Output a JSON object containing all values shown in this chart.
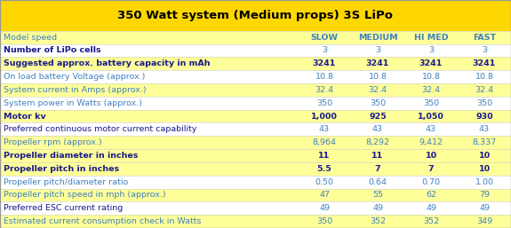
{
  "title": "350 Watt system (Medium props) 3S LiPo",
  "title_bg": "#FFD700",
  "title_color": "#000000",
  "rows": [
    {
      "label": "Model speed",
      "values": [
        "SLOW",
        "MEDIUM",
        "HI MED",
        "FAST"
      ],
      "bold_label": false,
      "highlight": true,
      "bold_values": true,
      "label_color": "#4080C0",
      "val_color": "#4080C0"
    },
    {
      "label": "Number of LiPo cells",
      "values": [
        "3",
        "3",
        "3",
        "3"
      ],
      "bold_label": true,
      "highlight": false,
      "bold_values": false,
      "label_color": "#1A1A8C",
      "val_color": "#4080C0"
    },
    {
      "label": "Suggested approx. battery capacity in mAh",
      "values": [
        "3241",
        "3241",
        "3241",
        "3241"
      ],
      "bold_label": true,
      "highlight": true,
      "bold_values": true,
      "label_color": "#1A1A8C",
      "val_color": "#1A1A8C"
    },
    {
      "label": "On load battery Voltage (approx.)",
      "values": [
        "10.8",
        "10.8",
        "10.8",
        "10.8"
      ],
      "bold_label": false,
      "highlight": false,
      "bold_values": false,
      "label_color": "#4080C0",
      "val_color": "#4080C0"
    },
    {
      "label": "System current in Amps (approx.)",
      "values": [
        "32.4",
        "32.4",
        "32.4",
        "32.4"
      ],
      "bold_label": false,
      "highlight": true,
      "bold_values": false,
      "label_color": "#4080C0",
      "val_color": "#4080C0"
    },
    {
      "label": "System power in Watts (approx.)",
      "values": [
        "350",
        "350",
        "350",
        "350"
      ],
      "bold_label": false,
      "highlight": false,
      "bold_values": false,
      "label_color": "#4080C0",
      "val_color": "#4080C0"
    },
    {
      "label": "Motor kv",
      "values": [
        "1,000",
        "925",
        "1,050",
        "930"
      ],
      "bold_label": true,
      "highlight": true,
      "bold_values": true,
      "label_color": "#1A1A8C",
      "val_color": "#1A1A8C"
    },
    {
      "label": "Preferred continuous motor current capability",
      "values": [
        "43",
        "43",
        "43",
        "43"
      ],
      "bold_label": false,
      "highlight": false,
      "bold_values": false,
      "label_color": "#1A1A8C",
      "val_color": "#4080C0"
    },
    {
      "label": "Propeller rpm (approx.)",
      "values": [
        "8,964",
        "8,292",
        "9,412",
        "8,337"
      ],
      "bold_label": false,
      "highlight": true,
      "bold_values": false,
      "label_color": "#4080C0",
      "val_color": "#4080C0"
    },
    {
      "label": "Propeller diameter in inches",
      "values": [
        "11",
        "11",
        "10",
        "10"
      ],
      "bold_label": true,
      "highlight": true,
      "bold_values": true,
      "label_color": "#1A1A8C",
      "val_color": "#1A1A8C"
    },
    {
      "label": "Propeller pitch in inches",
      "values": [
        "5.5",
        "7",
        "7",
        "10"
      ],
      "bold_label": true,
      "highlight": true,
      "bold_values": true,
      "label_color": "#1A1A8C",
      "val_color": "#1A1A8C"
    },
    {
      "label": "Propeller pitch/diameter ratio",
      "values": [
        "0.50",
        "0.64",
        "0.70",
        "1.00"
      ],
      "bold_label": false,
      "highlight": false,
      "bold_values": false,
      "label_color": "#4080C0",
      "val_color": "#4080C0"
    },
    {
      "label": "Propeller pitch speed in mph (approx.)",
      "values": [
        "47",
        "55",
        "62",
        "79"
      ],
      "bold_label": false,
      "highlight": true,
      "bold_values": false,
      "label_color": "#4080C0",
      "val_color": "#4080C0"
    },
    {
      "label": "Preferred ESC current rating",
      "values": [
        "49",
        "49",
        "49",
        "49"
      ],
      "bold_label": false,
      "highlight": false,
      "bold_values": false,
      "label_color": "#1A1A8C",
      "val_color": "#4080C0"
    },
    {
      "label": "Estimated current consumption check in Watts",
      "values": [
        "350",
        "352",
        "352",
        "349"
      ],
      "bold_label": false,
      "highlight": true,
      "bold_values": false,
      "label_color": "#4080C0",
      "val_color": "#4080C0"
    }
  ],
  "highlight_color": "#FFFF99",
  "white_color": "#FFFFFF",
  "border_color": "#CCCCCC",
  "figsize": [
    5.75,
    2.57
  ],
  "dpi": 100
}
